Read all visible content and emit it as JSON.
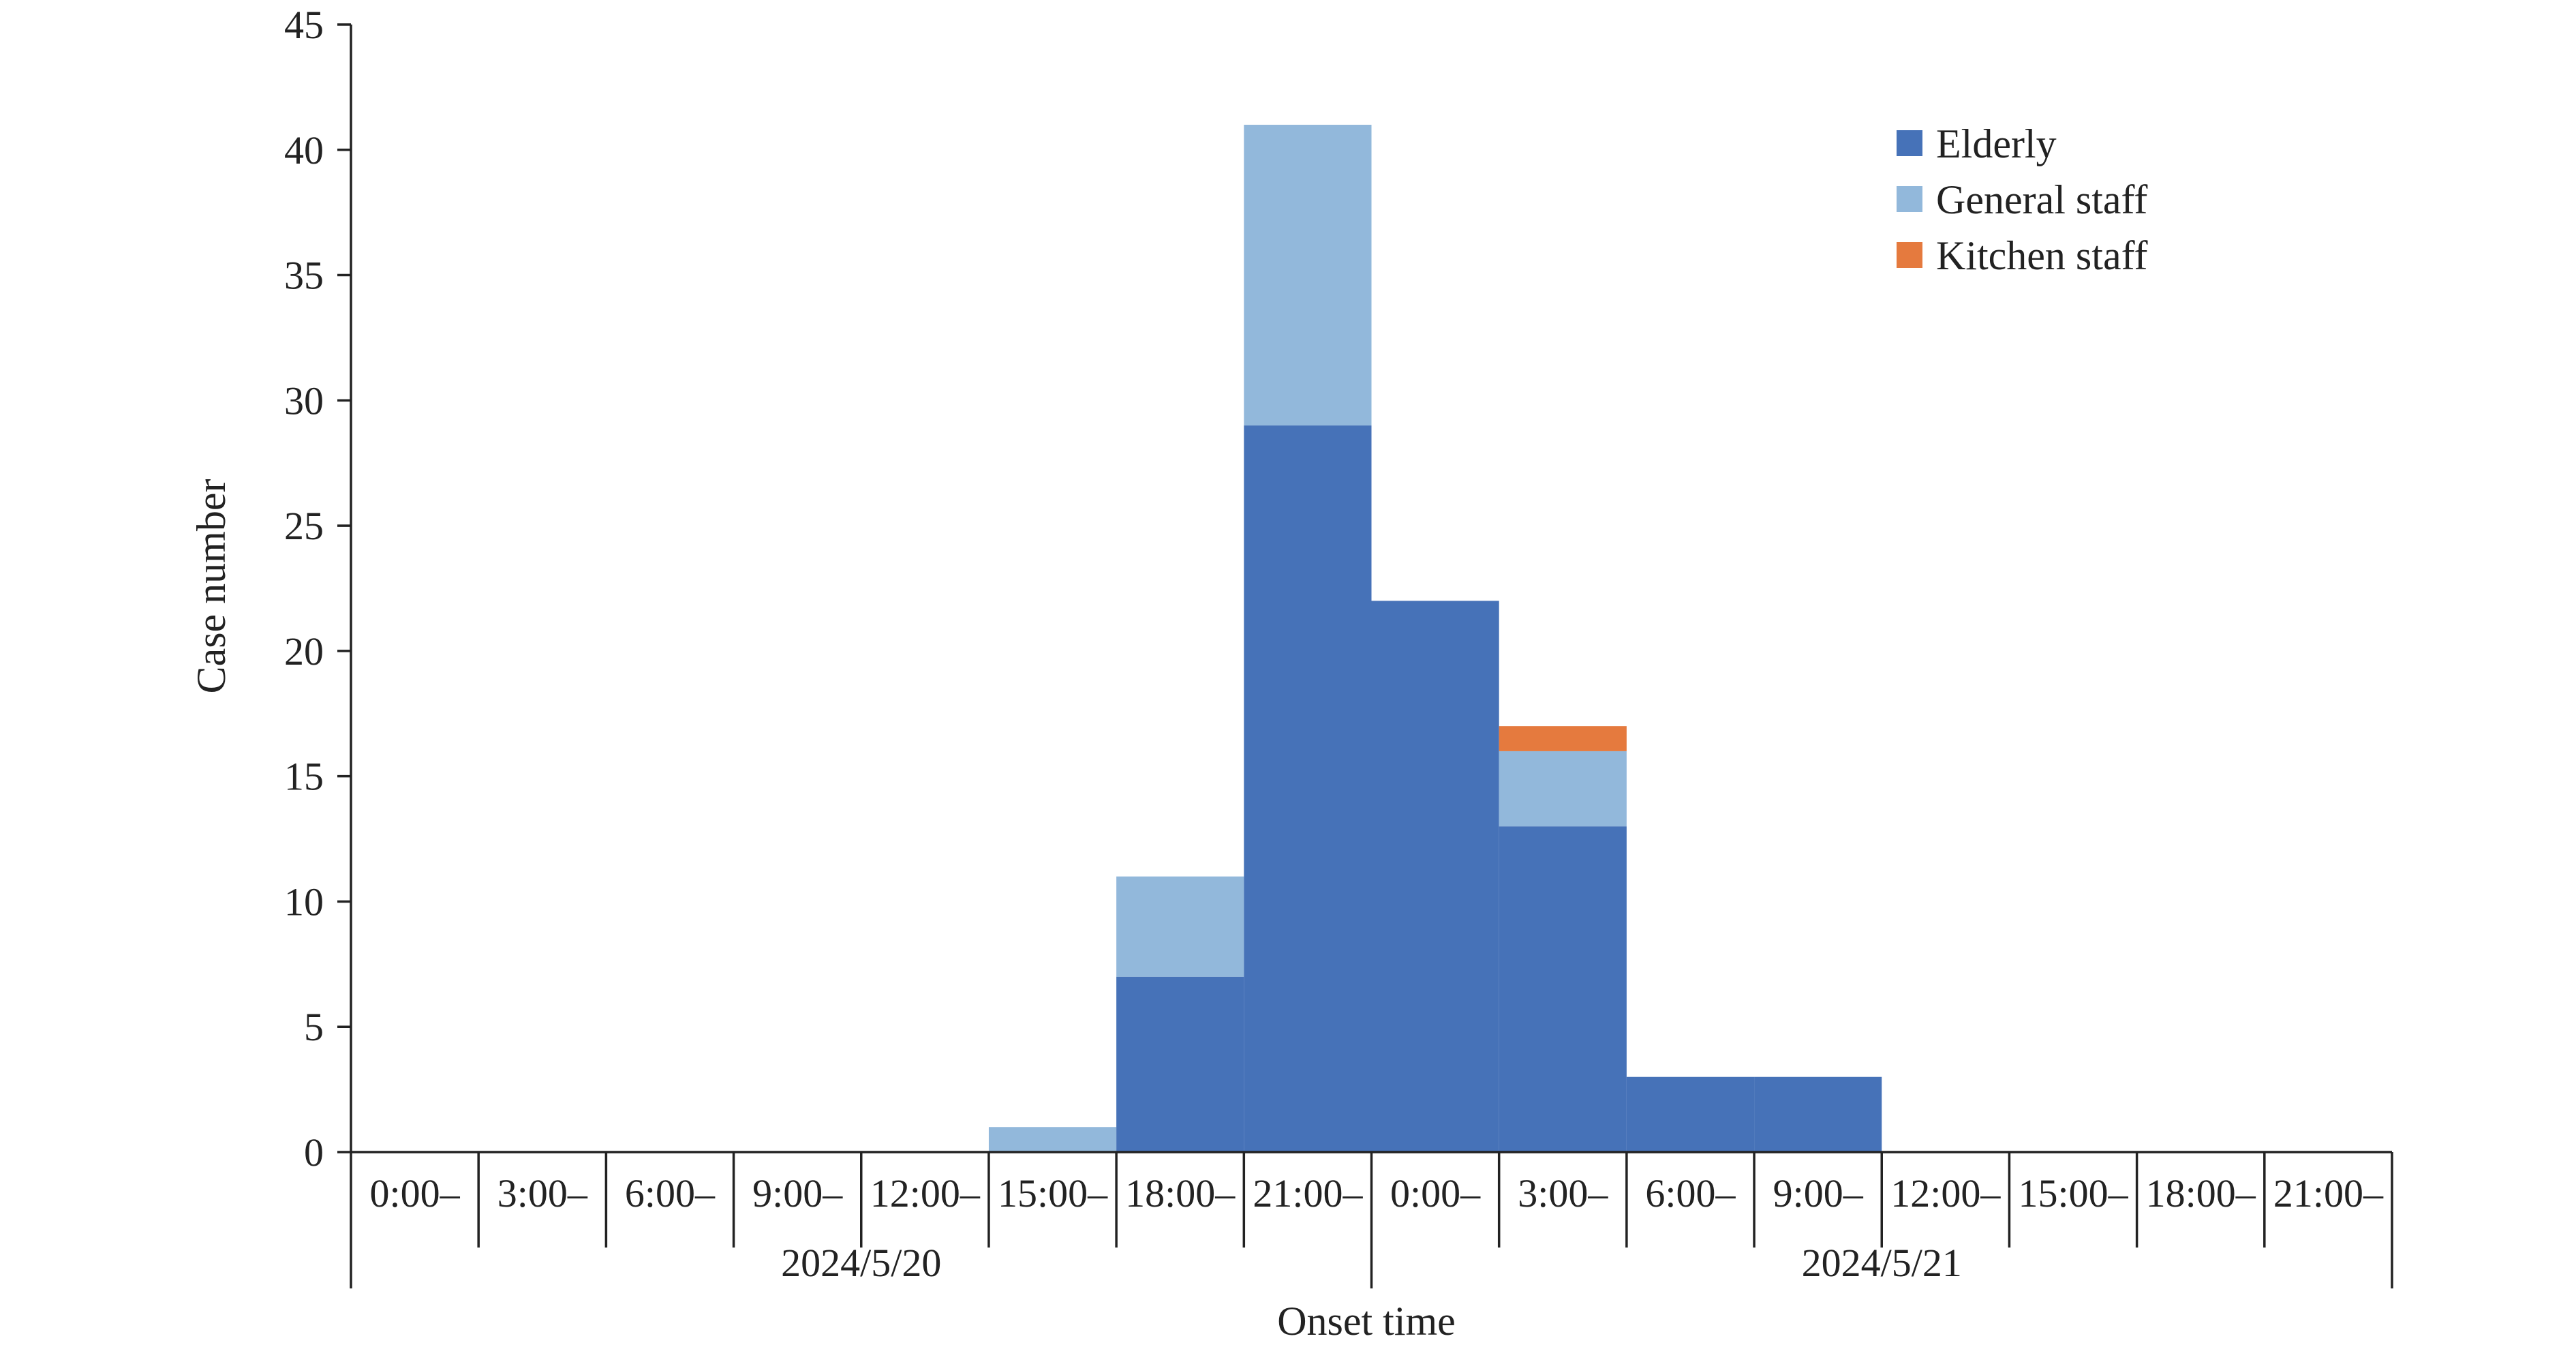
{
  "chart_data": {
    "type": "bar",
    "stacked": true,
    "title": "",
    "xlabel": "Onset time",
    "ylabel": "Case number",
    "ylim": [
      0,
      45
    ],
    "yticks": [
      0,
      5,
      10,
      15,
      20,
      25,
      30,
      35,
      40,
      45
    ],
    "categories": [
      "0:00–",
      "3:00–",
      "6:00–",
      "9:00–",
      "12:00–",
      "15:00–",
      "18:00–",
      "21:00–",
      "0:00–",
      "3:00–",
      "6:00–",
      "9:00–",
      "12:00–",
      "15:00–",
      "18:00–",
      "21:00–"
    ],
    "date_groups": [
      {
        "label": "2024/5/20",
        "span": 8
      },
      {
        "label": "2024/5/21",
        "span": 8
      }
    ],
    "series": [
      {
        "name": "Elderly",
        "color": "#4672b8",
        "values": [
          0,
          0,
          0,
          0,
          0,
          0,
          7,
          29,
          22,
          13,
          3,
          3,
          0,
          0,
          0,
          0
        ]
      },
      {
        "name": "General staff",
        "color": "#92b8db",
        "values": [
          0,
          0,
          0,
          0,
          0,
          1,
          4,
          12,
          0,
          3,
          0,
          0,
          0,
          0,
          0,
          0
        ]
      },
      {
        "name": "Kitchen staff",
        "color": "#e57a3e",
        "values": [
          0,
          0,
          0,
          0,
          0,
          0,
          0,
          0,
          0,
          1,
          0,
          0,
          0,
          0,
          0,
          0
        ]
      }
    ],
    "legend_position": "top-right",
    "grid": false
  }
}
